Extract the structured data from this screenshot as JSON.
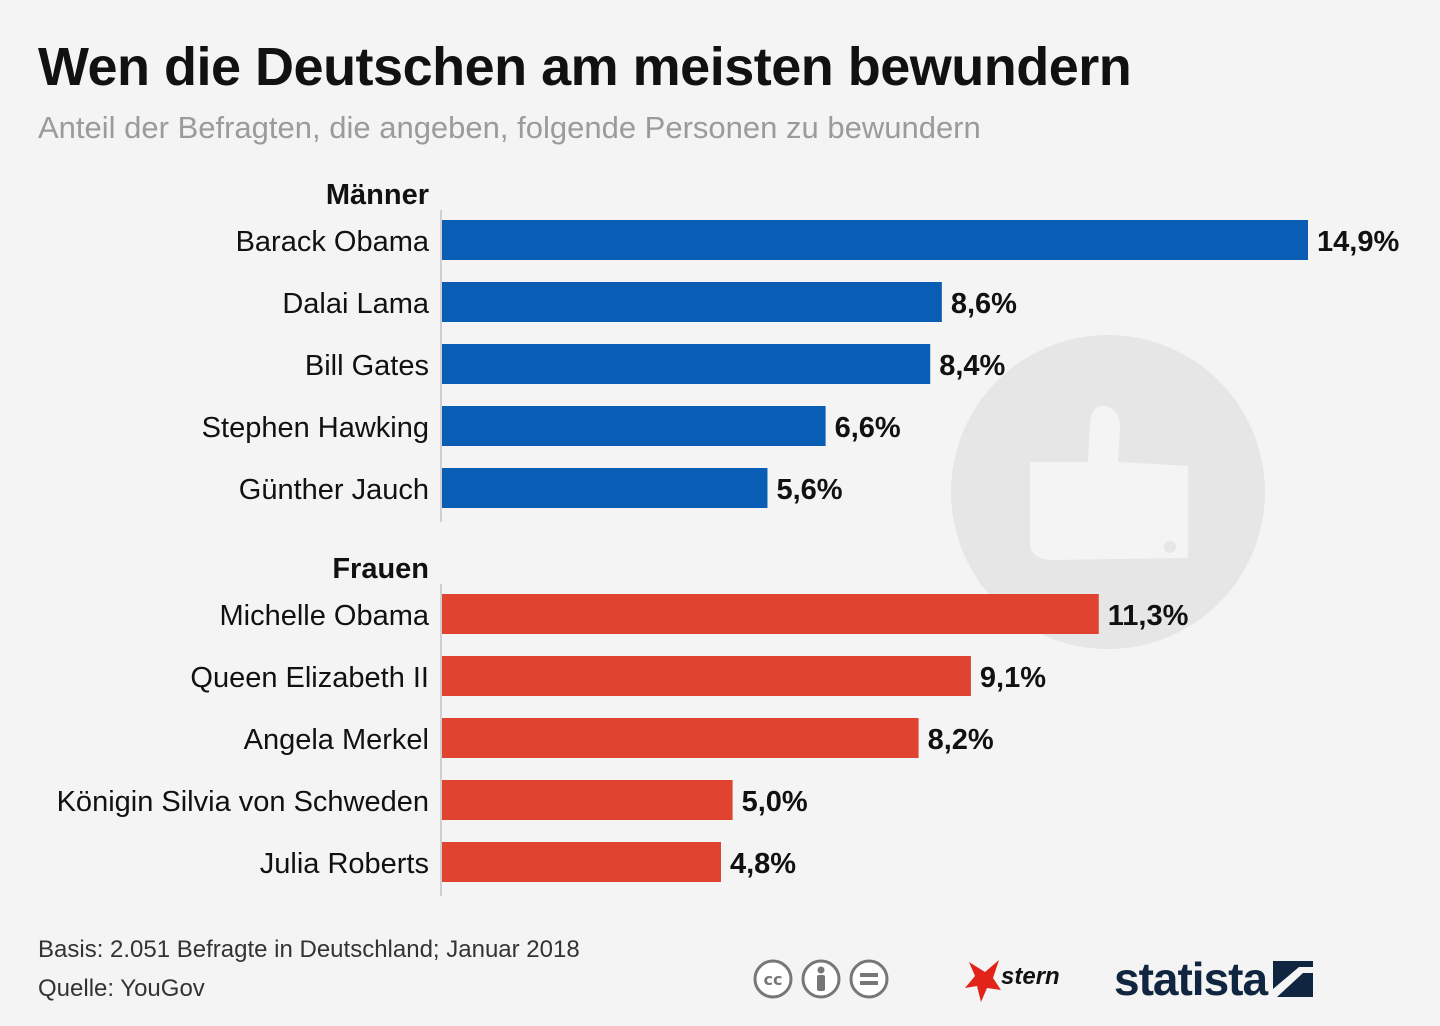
{
  "title": "Wen die Deutschen am meisten bewundern",
  "subtitle": "Anteil der Befragten, die angeben, folgende Personen zu bewundern",
  "colors": {
    "men": "#0a5db4",
    "women": "#e0432f",
    "watermark": "#e6e6e6"
  },
  "chart_data": {
    "type": "bar",
    "orientation": "horizontal",
    "unit": "%",
    "xlim": [
      0,
      14.9
    ],
    "groups": [
      {
        "name": "Männer",
        "color": "#0a5db4",
        "categories": [
          "Barack Obama",
          "Dalai Lama",
          "Bill Gates",
          "Stephen Hawking",
          "Günther Jauch"
        ],
        "values": [
          14.9,
          8.6,
          8.4,
          6.6,
          5.6
        ],
        "labels": [
          "14,9%",
          "8,6%",
          "8,4%",
          "6,6%",
          "5,6%"
        ]
      },
      {
        "name": "Frauen",
        "color": "#e0432f",
        "categories": [
          "Michelle Obama",
          "Queen Elizabeth II",
          "Angela Merkel",
          "Königin Silvia von Schweden",
          "Julia Roberts"
        ],
        "values": [
          11.3,
          9.1,
          8.2,
          5.0,
          4.8
        ],
        "labels": [
          "11,3%",
          "9,1%",
          "8,2%",
          "5,0%",
          "4,8%"
        ]
      }
    ]
  },
  "footer": {
    "basis": "Basis: 2.051 Befragte in Deutschland; Januar 2018",
    "source": "Quelle: YouGov"
  },
  "logos": {
    "stern": "stern",
    "statista": "statista"
  },
  "icons": [
    "creative-commons-icon",
    "attribution-icon",
    "no-derivatives-icon",
    "thumbs-up-icon"
  ]
}
